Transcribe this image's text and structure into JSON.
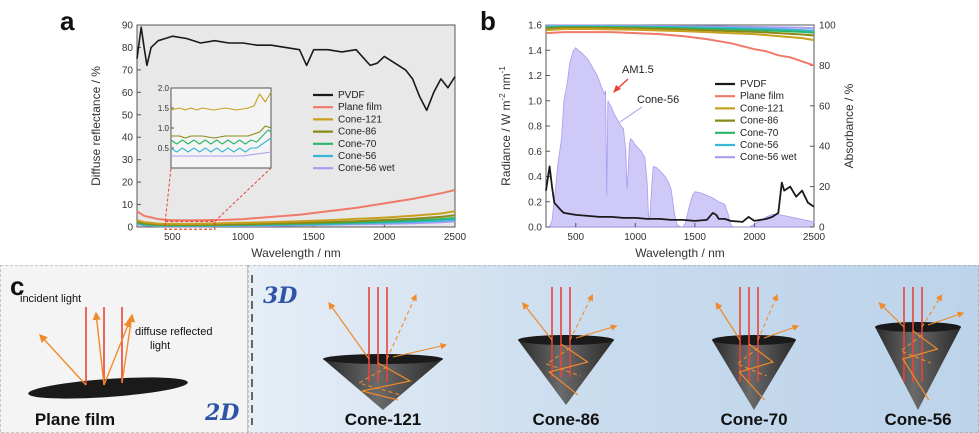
{
  "panels": {
    "a": "a",
    "b": "b",
    "c": "c"
  },
  "chart_data": [
    {
      "id": "a",
      "type": "line",
      "xlabel": "Wavelength / nm",
      "ylabel": "Diffuse reflectance / %",
      "xlim": [
        250,
        2500
      ],
      "ylim": [
        0,
        90
      ],
      "xticks": [
        500,
        1000,
        1500,
        2000,
        2500
      ],
      "yticks": [
        0,
        10,
        20,
        30,
        40,
        50,
        60,
        70,
        80,
        90
      ],
      "legend_position": "right",
      "series": [
        {
          "name": "PVDF",
          "color": "#1a1a1a",
          "x": [
            250,
            280,
            300,
            320,
            350,
            400,
            450,
            500,
            600,
            700,
            800,
            900,
            1000,
            1100,
            1200,
            1300,
            1400,
            1450,
            1500,
            1600,
            1700,
            1800,
            1900,
            1950,
            2000,
            2100,
            2150,
            2200,
            2250,
            2300,
            2350,
            2400,
            2450,
            2500
          ],
          "y": [
            75,
            89,
            80,
            72,
            80,
            83,
            84,
            85,
            84,
            82,
            83,
            82,
            82,
            81,
            81,
            80,
            79,
            72,
            79,
            79,
            78,
            79,
            72,
            73,
            76,
            72,
            70,
            66,
            58,
            52,
            60,
            66,
            62,
            67
          ]
        },
        {
          "name": "Plane film",
          "color": "#f07a6a",
          "x": [
            250,
            300,
            400,
            500,
            700,
            900,
            1000,
            1200,
            1400,
            1600,
            1800,
            2000,
            2200,
            2400,
            2500
          ],
          "y": [
            7,
            5,
            3.5,
            3,
            3,
            3.2,
            3.5,
            4.5,
            5.5,
            7,
            8.5,
            10.5,
            12.5,
            15,
            16.5
          ]
        },
        {
          "name": "Cone-121",
          "color": "#c8a020",
          "x": [
            250,
            300,
            400,
            600,
            800,
            1000,
            1200,
            1400,
            1600,
            1800,
            2000,
            2200,
            2400,
            2500
          ],
          "y": [
            3,
            2.2,
            1.5,
            1.4,
            1.6,
            1.9,
            2.2,
            2.6,
            3,
            3.6,
            4.2,
            5,
            6,
            7
          ]
        },
        {
          "name": "Cone-86",
          "color": "#8a8a18",
          "x": [
            250,
            300,
            400,
            600,
            800,
            1000,
            1200,
            1400,
            1600,
            1800,
            2000,
            2200,
            2400,
            2500
          ],
          "y": [
            2.5,
            1.6,
            1,
            0.9,
            1,
            1.2,
            1.5,
            1.8,
            2.2,
            2.6,
            3.1,
            3.7,
            4.5,
            5.2
          ]
        },
        {
          "name": "Cone-70",
          "color": "#2bb56a",
          "x": [
            250,
            300,
            400,
            600,
            800,
            1000,
            1200,
            1400,
            1600,
            1800,
            2000,
            2200,
            2400,
            2500
          ],
          "y": [
            2,
            1.2,
            0.8,
            0.7,
            0.8,
            1,
            1.2,
            1.4,
            1.7,
            2,
            2.4,
            2.9,
            3.5,
            4
          ]
        },
        {
          "name": "Cone-56",
          "color": "#3ab6d8",
          "x": [
            250,
            300,
            400,
            600,
            800,
            1000,
            1200,
            1400,
            1600,
            1800,
            2000,
            2200,
            2400,
            2500
          ],
          "y": [
            1.6,
            1,
            0.6,
            0.5,
            0.6,
            0.7,
            0.9,
            1.1,
            1.3,
            1.6,
            1.9,
            2.3,
            2.8,
            3.2
          ]
        },
        {
          "name": "Cone-56 wet",
          "color": "#a89cf0",
          "x": [
            250,
            300,
            400,
            600,
            800,
            1000,
            1200,
            1400,
            1600,
            1800,
            2000,
            2200,
            2400,
            2500
          ],
          "y": [
            1.2,
            0.8,
            0.4,
            0.35,
            0.4,
            0.5,
            0.6,
            0.8,
            1,
            1.2,
            1.4,
            1.7,
            2.1,
            2.5
          ]
        }
      ],
      "inset": {
        "xlim": [
          450,
          800
        ],
        "ylim": [
          0,
          2.0
        ],
        "yticks": [
          0.5,
          1.0,
          1.5,
          2.0
        ],
        "series": [
          {
            "name": "Cone-121",
            "x": [
              450,
              480,
              500,
              520,
              540,
              560,
              600,
              640,
              680,
              720,
              740,
              760,
              780,
              800
            ],
            "y": [
              1.45,
              1.5,
              1.45,
              1.5,
              1.45,
              1.5,
              1.45,
              1.5,
              1.45,
              1.5,
              1.55,
              1.85,
              1.65,
              1.9
            ]
          },
          {
            "name": "Cone-86",
            "x": [
              450,
              480,
              500,
              520,
              560,
              600,
              640,
              680,
              720,
              740,
              760,
              780,
              800
            ],
            "y": [
              0.8,
              0.8,
              0.75,
              0.8,
              0.8,
              0.75,
              0.8,
              0.8,
              0.8,
              0.85,
              0.9,
              1.05,
              1.0
            ]
          },
          {
            "name": "Cone-70",
            "x": [
              450,
              470,
              490,
              510,
              530,
              550,
              570,
              590,
              610,
              630,
              650,
              670,
              690,
              710,
              730,
              750,
              770,
              790,
              800
            ],
            "y": [
              0.7,
              0.6,
              0.7,
              0.6,
              0.7,
              0.6,
              0.7,
              0.6,
              0.7,
              0.6,
              0.7,
              0.6,
              0.7,
              0.6,
              0.7,
              0.65,
              0.8,
              0.95,
              0.9
            ]
          },
          {
            "name": "Cone-56",
            "x": [
              450,
              470,
              490,
              510,
              530,
              550,
              570,
              590,
              610,
              630,
              650,
              670,
              690,
              710,
              730,
              750,
              770,
              790,
              800
            ],
            "y": [
              0.5,
              0.4,
              0.5,
              0.4,
              0.5,
              0.4,
              0.5,
              0.4,
              0.5,
              0.4,
              0.5,
              0.4,
              0.5,
              0.4,
              0.5,
              0.5,
              0.6,
              0.7,
              0.75
            ]
          },
          {
            "name": "Cone-56 wet",
            "x": [
              450,
              500,
              550,
              600,
              650,
              700,
              750,
              800
            ],
            "y": [
              0.3,
              0.3,
              0.3,
              0.3,
              0.3,
              0.3,
              0.35,
              0.4
            ]
          }
        ]
      }
    },
    {
      "id": "b",
      "type": "line",
      "xlabel": "Wavelength / nm",
      "ylabel": "Radiance / W m",
      "ylabel_sup": "-2",
      "ylabel_mid": " nm",
      "ylabel_sup2": "-1",
      "y2label": "Absorbance / %",
      "xlim": [
        250,
        2500
      ],
      "ylim": [
        0,
        1.6
      ],
      "y2lim": [
        0,
        100
      ],
      "xticks": [
        500,
        1000,
        1500,
        2000,
        2500
      ],
      "yticks": [
        0.0,
        0.2,
        0.4,
        0.6,
        0.8,
        1.0,
        1.2,
        1.4,
        1.6
      ],
      "y2ticks": [
        0,
        20,
        40,
        60,
        80,
        100
      ],
      "legend_position": "right",
      "annotations": [
        "AM1.5",
        "Cone-56"
      ],
      "am15": {
        "color": "#a89cf0",
        "x": [
          280,
          300,
          330,
          350,
          380,
          400,
          430,
          450,
          480,
          500,
          520,
          550,
          580,
          600,
          620,
          650,
          680,
          700,
          720,
          740,
          750,
          760,
          770,
          780,
          800,
          820,
          850,
          880,
          900,
          920,
          930,
          940,
          950,
          960,
          980,
          1000,
          1050,
          1080,
          1100,
          1110,
          1120,
          1130,
          1140,
          1150,
          1180,
          1200,
          1250,
          1280,
          1300,
          1330,
          1350,
          1380,
          1400,
          1420,
          1450,
          1480,
          1500,
          1550,
          1600,
          1650,
          1700,
          1750,
          1780,
          1800,
          1820,
          1850,
          1900,
          1950,
          2000,
          2050,
          2100,
          2150,
          2200,
          2250,
          2300,
          2350,
          2400,
          2450,
          2500
        ],
        "y": [
          0,
          0.05,
          0.3,
          0.5,
          0.7,
          1.0,
          1.15,
          1.3,
          1.4,
          1.42,
          1.4,
          1.38,
          1.35,
          1.33,
          1.3,
          1.25,
          1.2,
          1.15,
          1.1,
          1.05,
          1.08,
          0.25,
          1.0,
          0.98,
          0.95,
          0.9,
          0.85,
          0.8,
          0.78,
          0.6,
          0.3,
          0.45,
          0.65,
          0.7,
          0.68,
          0.65,
          0.6,
          0.55,
          0.35,
          0.1,
          0.05,
          0.2,
          0.35,
          0.48,
          0.47,
          0.45,
          0.4,
          0.35,
          0.3,
          0.1,
          0.02,
          0,
          0,
          0.03,
          0.15,
          0.25,
          0.28,
          0.27,
          0.25,
          0.23,
          0.2,
          0.18,
          0.1,
          0.02,
          0,
          0,
          0,
          0,
          0.02,
          0.05,
          0.08,
          0.1,
          0.1,
          0.09,
          0.08,
          0.07,
          0.06,
          0.05,
          0.04
        ]
      },
      "series": [
        {
          "name": "PVDF",
          "color": "#1a1a1a",
          "axis": "right",
          "x": [
            250,
            280,
            300,
            320,
            350,
            380,
            400,
            450,
            500,
            600,
            700,
            800,
            900,
            1000,
            1100,
            1200,
            1300,
            1400,
            1500,
            1600,
            1650,
            1680,
            1700,
            1750,
            1800,
            1900,
            1950,
            2000,
            2100,
            2150,
            2200,
            2230,
            2250,
            2300,
            2350,
            2400,
            2450,
            2500
          ],
          "y": [
            18,
            30,
            20,
            12,
            10,
            8,
            7,
            6.5,
            6,
            5.5,
            5,
            5,
            4.5,
            4.5,
            4,
            4,
            3.5,
            3.5,
            3,
            3.5,
            7,
            6,
            4,
            4,
            3,
            2.5,
            5,
            3,
            4,
            5,
            7,
            22,
            18,
            20,
            15,
            18,
            12,
            10
          ]
        },
        {
          "name": "Plane film",
          "color": "#f07a6a",
          "axis": "right",
          "x": [
            250,
            400,
            600,
            800,
            1000,
            1200,
            1400,
            1600,
            1800,
            2000,
            2100,
            2200,
            2300,
            2400,
            2500
          ],
          "y": [
            96,
            96.5,
            96.5,
            96.5,
            96,
            95.5,
            94.5,
            93,
            91,
            88,
            87,
            85,
            84,
            82,
            80
          ]
        },
        {
          "name": "Cone-121",
          "color": "#c8a020",
          "axis": "right",
          "x": [
            250,
            400,
            600,
            800,
            1000,
            1200,
            1400,
            1600,
            1800,
            2000,
            2200,
            2400,
            2500
          ],
          "y": [
            97.5,
            98,
            98,
            97.8,
            97.6,
            97.3,
            97,
            96.5,
            96,
            95.5,
            94.5,
            93.5,
            92.5
          ]
        },
        {
          "name": "Cone-86",
          "color": "#8a8a18",
          "axis": "right",
          "x": [
            250,
            400,
            600,
            800,
            1000,
            1200,
            1400,
            1600,
            1800,
            2000,
            2200,
            2400,
            2500
          ],
          "y": [
            98.2,
            98.6,
            98.6,
            98.5,
            98.3,
            98.1,
            97.8,
            97.4,
            97,
            96.6,
            96,
            95.3,
            94.8
          ]
        },
        {
          "name": "Cone-70",
          "color": "#2bb56a",
          "axis": "right",
          "x": [
            250,
            400,
            600,
            800,
            1000,
            1200,
            1400,
            1600,
            1800,
            2000,
            2200,
            2400,
            2500
          ],
          "y": [
            98.8,
            99,
            99,
            98.9,
            98.8,
            98.6,
            98.4,
            98.1,
            97.8,
            97.5,
            97.1,
            96.6,
            96.2
          ]
        },
        {
          "name": "Cone-56",
          "color": "#3ab6d8",
          "axis": "right",
          "x": [
            250,
            400,
            600,
            800,
            1000,
            1200,
            1400,
            1600,
            1800,
            2000,
            2200,
            2400,
            2500
          ],
          "y": [
            99.2,
            99.4,
            99.4,
            99.3,
            99.2,
            99.1,
            98.9,
            98.7,
            98.5,
            98.2,
            97.9,
            97.5,
            97.2
          ]
        },
        {
          "name": "Cone-56 wet",
          "color": "#a89cf0",
          "axis": "right",
          "x": [
            250,
            400,
            600,
            800,
            1000,
            1200,
            1400,
            1600,
            1800,
            2000,
            2200,
            2400,
            2500
          ],
          "y": [
            99.6,
            99.7,
            99.7,
            99.6,
            99.6,
            99.5,
            99.4,
            99.3,
            99.1,
            99,
            98.8,
            98.6,
            98.4
          ]
        }
      ]
    }
  ],
  "panel_c": {
    "incident_label": "incident light",
    "diffuse_label_1": "diffuse reflected",
    "diffuse_label_2": "light",
    "label_2d": "2D",
    "label_3d": "3D",
    "plane_label": "Plane film",
    "cones": [
      "Cone-121",
      "Cone-86",
      "Cone-70",
      "Cone-56"
    ],
    "colors": {
      "incident": "#e8433a",
      "reflected": "#f08a2a",
      "cone": "#3a3a3a",
      "bg_left": "#f4f4f4",
      "bg_right": "#c9dcee"
    }
  }
}
